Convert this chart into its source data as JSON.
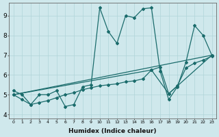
{
  "xlabel": "Humidex (Indice chaleur)",
  "xlim": [
    -0.5,
    23.5
  ],
  "ylim": [
    3.8,
    9.65
  ],
  "xticks": [
    0,
    1,
    2,
    3,
    4,
    5,
    6,
    7,
    8,
    9,
    10,
    11,
    12,
    13,
    14,
    15,
    16,
    17,
    18,
    19,
    20,
    21,
    22,
    23
  ],
  "yticks": [
    4,
    5,
    6,
    7,
    8,
    9
  ],
  "bg_color": "#cfe8ec",
  "line_color": "#1a6b6b",
  "line1_x": [
    0,
    1,
    2,
    3,
    4,
    5,
    6,
    7,
    8,
    9,
    10,
    11,
    12,
    13,
    14,
    15,
    16,
    17,
    18,
    19,
    20,
    21,
    22,
    23
  ],
  "line1_y": [
    5.2,
    5.0,
    4.5,
    5.0,
    5.0,
    5.2,
    4.4,
    4.5,
    5.4,
    5.5,
    9.4,
    8.2,
    7.6,
    9.0,
    8.9,
    9.35,
    9.4,
    6.2,
    4.75,
    5.4,
    6.65,
    8.5,
    8.0,
    7.0
  ],
  "line2_x": [
    0,
    1,
    2,
    3,
    4,
    5,
    6,
    7,
    8,
    9,
    10,
    11,
    12,
    13,
    14,
    15,
    16,
    17,
    18,
    19,
    20,
    21,
    22,
    23
  ],
  "line2_y": [
    5.0,
    4.75,
    4.5,
    4.6,
    4.7,
    4.85,
    5.0,
    5.1,
    5.25,
    5.35,
    5.45,
    5.5,
    5.55,
    5.65,
    5.7,
    5.8,
    6.25,
    6.4,
    5.05,
    5.45,
    6.35,
    6.6,
    6.75,
    6.95
  ],
  "line3_x": [
    0,
    23
  ],
  "line3_y": [
    5.0,
    7.0
  ],
  "line4_x": [
    0,
    16,
    18,
    23
  ],
  "line4_y": [
    5.0,
    6.25,
    5.05,
    7.0
  ]
}
